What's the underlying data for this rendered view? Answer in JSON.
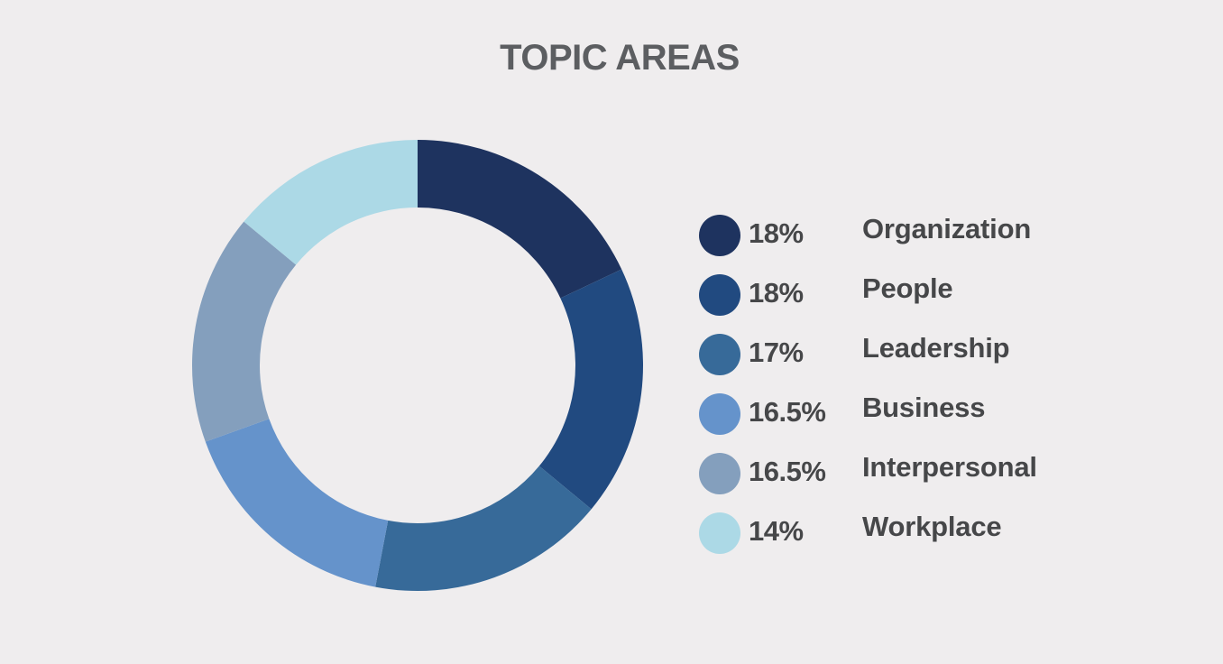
{
  "chart_data": {
    "type": "pie",
    "title": "TOPIC AREAS",
    "categories": [
      "Organization",
      "People",
      "Leadership",
      "Business",
      "Interpersonal",
      "Workplace"
    ],
    "values": [
      18,
      18,
      17,
      16.5,
      16.5,
      14
    ],
    "value_labels": [
      "18%",
      "18%",
      "17%",
      "16.5%",
      "16.5%",
      "14%"
    ],
    "colors": [
      "#1e335f",
      "#214a80",
      "#376a99",
      "#6593cb",
      "#849fbd",
      "#acd9e6"
    ],
    "legend_placement": "right"
  }
}
